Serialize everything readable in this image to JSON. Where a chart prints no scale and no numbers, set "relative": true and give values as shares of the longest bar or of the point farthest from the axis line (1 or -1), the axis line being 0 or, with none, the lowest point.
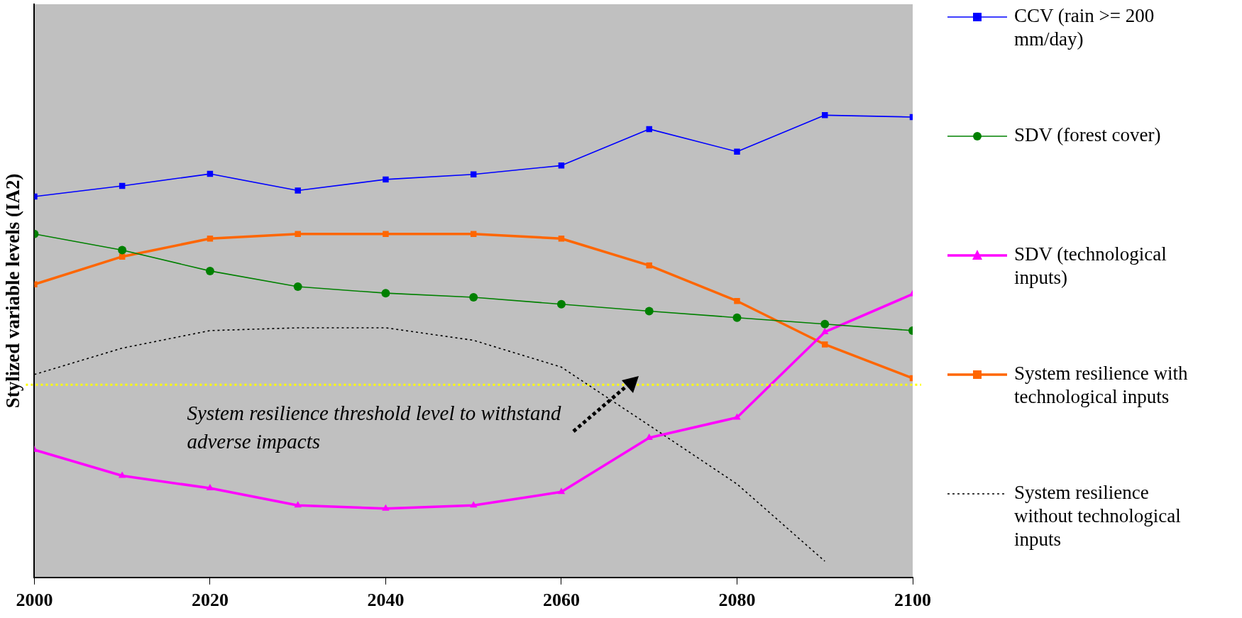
{
  "chart_data": {
    "type": "line",
    "ylabel": "Stylized variable levels (IA2)",
    "relative": true,
    "x": [
      2000,
      2010,
      2020,
      2030,
      2040,
      2050,
      2060,
      2070,
      2080,
      2090,
      2100
    ],
    "xlim": [
      2000,
      2100
    ],
    "xticks": [
      2000,
      2020,
      2040,
      2060,
      2080,
      2100
    ],
    "grid": false,
    "legend": "right",
    "series": [
      {
        "name": "CCV (rain >= 200 mm/day)",
        "color": "#0000ff",
        "marker": "square",
        "line_style": "solid",
        "values": [
          0.824,
          0.847,
          0.873,
          0.837,
          0.861,
          0.872,
          0.891,
          0.97,
          0.921,
          1,
          0.996
        ]
      },
      {
        "name": "SDV (forest cover)",
        "color": "#008000",
        "marker": "circle",
        "line_style": "solid",
        "values": [
          0.743,
          0.708,
          0.663,
          0.629,
          0.615,
          0.606,
          0.591,
          0.576,
          0.562,
          0.548,
          0.534
        ]
      },
      {
        "name": "SDV (technological inputs)",
        "color": "#ff00ff",
        "marker": "triangle",
        "line_style": "solid",
        "values": [
          0.276,
          0.22,
          0.193,
          0.156,
          0.149,
          0.156,
          0.185,
          0.302,
          0.346,
          0.531,
          0.613
        ]
      },
      {
        "name": "System resilience with technological inputs",
        "color": "#ff6600",
        "marker": "square",
        "line_style": "solid",
        "values": [
          0.634,
          0.694,
          0.733,
          0.743,
          0.743,
          0.743,
          0.733,
          0.675,
          0.598,
          0.504,
          0.431
        ]
      },
      {
        "name": "System resilience without technological inputs",
        "color": "#000000",
        "marker": "none",
        "line_style": "dotted",
        "values": [
          0.439,
          0.496,
          0.534,
          0.54,
          0.54,
          0.513,
          0.455,
          0.329,
          0.202,
          0.035,
          null
        ]
      }
    ],
    "ref_lines": [
      {
        "axis": "y",
        "value": 0.417,
        "label": "System resilience threshold level to withstand adverse impacts",
        "color": "#ffff00",
        "line_style": "dotted"
      }
    ]
  }
}
